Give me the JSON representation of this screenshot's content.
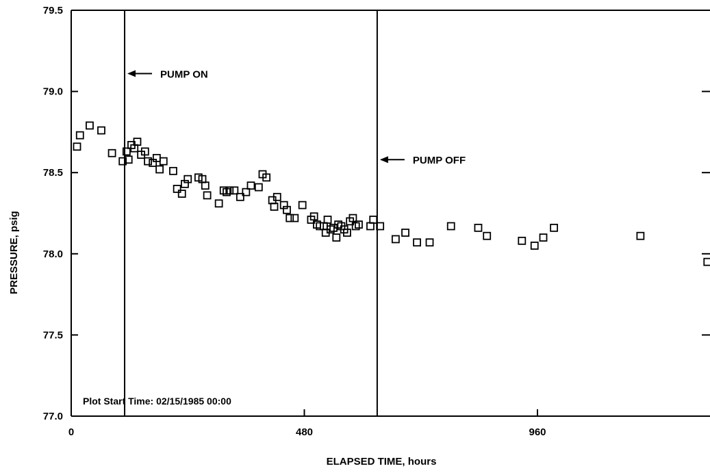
{
  "chart_data": {
    "type": "scatter",
    "xlabel": "ELAPSED TIME, hours",
    "ylabel": "PRESSURE, psig",
    "xlim": [
      0,
      1320
    ],
    "ylim": [
      77.0,
      79.5
    ],
    "x_ticks": [
      0,
      480,
      960
    ],
    "x_tick_labels": [
      "0",
      "480",
      "960"
    ],
    "y_ticks": [
      77.0,
      77.5,
      78.0,
      78.5,
      79.0,
      79.5
    ],
    "y_tick_labels": [
      "77.0",
      "77.5",
      "78.0",
      "78.5",
      "79.0",
      "79.5"
    ],
    "marker": "open-square",
    "grid": false,
    "annotations": [
      {
        "type": "vline",
        "x": 110,
        "label": "PUMP ON",
        "y": 79.11
      },
      {
        "type": "vline",
        "x": 630,
        "label": "PUMP OFF",
        "y": 78.58
      }
    ],
    "note": "Plot Start Time: 02/15/1985 00:00",
    "series": [
      {
        "points": [
          [
            12,
            78.66
          ],
          [
            18,
            78.73
          ],
          [
            38,
            78.79
          ],
          [
            62,
            78.76
          ],
          [
            84,
            78.62
          ],
          [
            106,
            78.57
          ],
          [
            114,
            78.63
          ],
          [
            118,
            78.58
          ],
          [
            124,
            78.67
          ],
          [
            130,
            78.65
          ],
          [
            136,
            78.69
          ],
          [
            144,
            78.61
          ],
          [
            152,
            78.63
          ],
          [
            158,
            78.57
          ],
          [
            168,
            78.56
          ],
          [
            176,
            78.59
          ],
          [
            182,
            78.52
          ],
          [
            190,
            78.57
          ],
          [
            210,
            78.51
          ],
          [
            218,
            78.4
          ],
          [
            228,
            78.37
          ],
          [
            234,
            78.43
          ],
          [
            240,
            78.46
          ],
          [
            262,
            78.47
          ],
          [
            270,
            78.46
          ],
          [
            276,
            78.42
          ],
          [
            280,
            78.36
          ],
          [
            304,
            78.31
          ],
          [
            314,
            78.39
          ],
          [
            320,
            78.38
          ],
          [
            326,
            78.39
          ],
          [
            336,
            78.39
          ],
          [
            348,
            78.35
          ],
          [
            360,
            78.38
          ],
          [
            370,
            78.42
          ],
          [
            386,
            78.41
          ],
          [
            394,
            78.49
          ],
          [
            402,
            78.47
          ],
          [
            414,
            78.33
          ],
          [
            418,
            78.29
          ],
          [
            424,
            78.35
          ],
          [
            438,
            78.3
          ],
          [
            444,
            78.27
          ],
          [
            450,
            78.22
          ],
          [
            460,
            78.22
          ],
          [
            476,
            78.3
          ],
          [
            494,
            78.21
          ],
          [
            500,
            78.23
          ],
          [
            506,
            78.18
          ],
          [
            512,
            78.17
          ],
          [
            520,
            78.17
          ],
          [
            524,
            78.13
          ],
          [
            528,
            78.21
          ],
          [
            534,
            78.15
          ],
          [
            540,
            78.16
          ],
          [
            546,
            78.1
          ],
          [
            550,
            78.18
          ],
          [
            556,
            78.17
          ],
          [
            562,
            78.15
          ],
          [
            568,
            78.13
          ],
          [
            574,
            78.2
          ],
          [
            580,
            78.22
          ],
          [
            586,
            78.17
          ],
          [
            592,
            78.18
          ],
          [
            616,
            78.17
          ],
          [
            622,
            78.21
          ],
          [
            636,
            78.17
          ],
          [
            668,
            78.09
          ],
          [
            688,
            78.13
          ],
          [
            712,
            78.07
          ],
          [
            738,
            78.07
          ],
          [
            782,
            78.17
          ],
          [
            838,
            78.16
          ],
          [
            856,
            78.11
          ],
          [
            928,
            78.08
          ],
          [
            954,
            78.05
          ],
          [
            972,
            78.1
          ],
          [
            994,
            78.16
          ],
          [
            1172,
            78.11
          ],
          [
            1310,
            77.95
          ]
        ]
      }
    ]
  }
}
